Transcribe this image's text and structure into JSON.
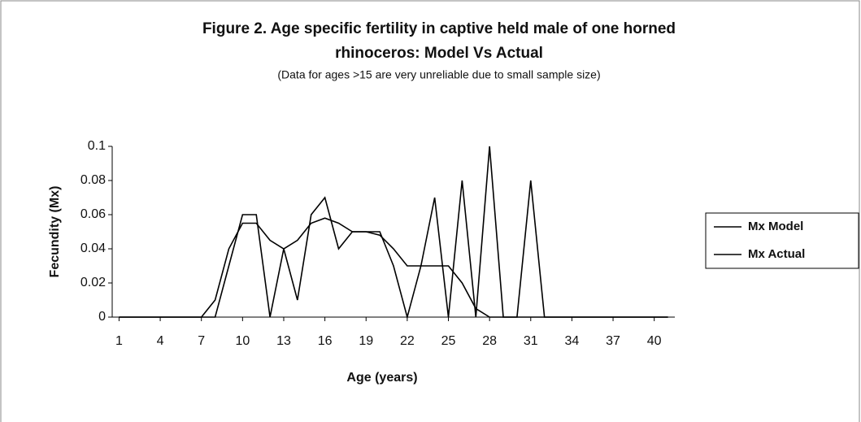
{
  "chart_data": {
    "type": "line",
    "title": [
      "Figure 2. Age specific fertility in captive held male of one horned",
      "rhinoceros: Model Vs Actual"
    ],
    "subtitle": "(Data for ages >15 are very unreliable due to small sample size)",
    "x_label": "Age (years)",
    "y_label": "Fecundity (Mx)",
    "x": [
      1,
      2,
      3,
      4,
      5,
      6,
      7,
      8,
      9,
      10,
      11,
      12,
      13,
      14,
      15,
      16,
      17,
      18,
      19,
      20,
      21,
      22,
      23,
      24,
      25,
      26,
      27,
      28,
      29,
      30,
      31,
      32,
      33,
      34,
      35,
      36,
      37,
      38,
      39,
      40,
      41
    ],
    "series": [
      {
        "name": "Mx Model",
        "color": "#000000",
        "values": [
          0,
          0,
          0,
          0,
          0,
          0,
          0,
          0.01,
          0.04,
          0.055,
          0.055,
          0.045,
          0.04,
          0.045,
          0.055,
          0.058,
          0.055,
          0.05,
          0.05,
          0.048,
          0.04,
          0.03,
          0.03,
          0.03,
          0.03,
          0.02,
          0.005,
          0,
          0,
          0,
          0,
          0,
          0,
          0,
          0,
          0,
          0,
          0,
          0,
          0,
          0
        ]
      },
      {
        "name": "Mx Actual",
        "color": "#000000",
        "values": [
          0,
          0,
          0,
          0,
          0,
          0,
          0,
          0,
          0.03,
          0.06,
          0.06,
          0,
          0.04,
          0.01,
          0.06,
          0.07,
          0.04,
          0.05,
          0.05,
          0.05,
          0.03,
          0,
          0.03,
          0.07,
          0,
          0.08,
          0,
          0.1,
          0,
          0,
          0.08,
          0,
          0,
          0,
          0,
          0,
          0,
          0,
          0,
          0,
          0
        ]
      }
    ],
    "xlim": [
      0.5,
      41.5
    ],
    "xticks": [
      1,
      4,
      7,
      10,
      13,
      16,
      19,
      22,
      25,
      28,
      31,
      34,
      37,
      40
    ],
    "ylim": [
      0,
      0.1
    ],
    "yticks": [
      0,
      0.02,
      0.04,
      0.06,
      0.08,
      0.1
    ],
    "legend": "right"
  }
}
